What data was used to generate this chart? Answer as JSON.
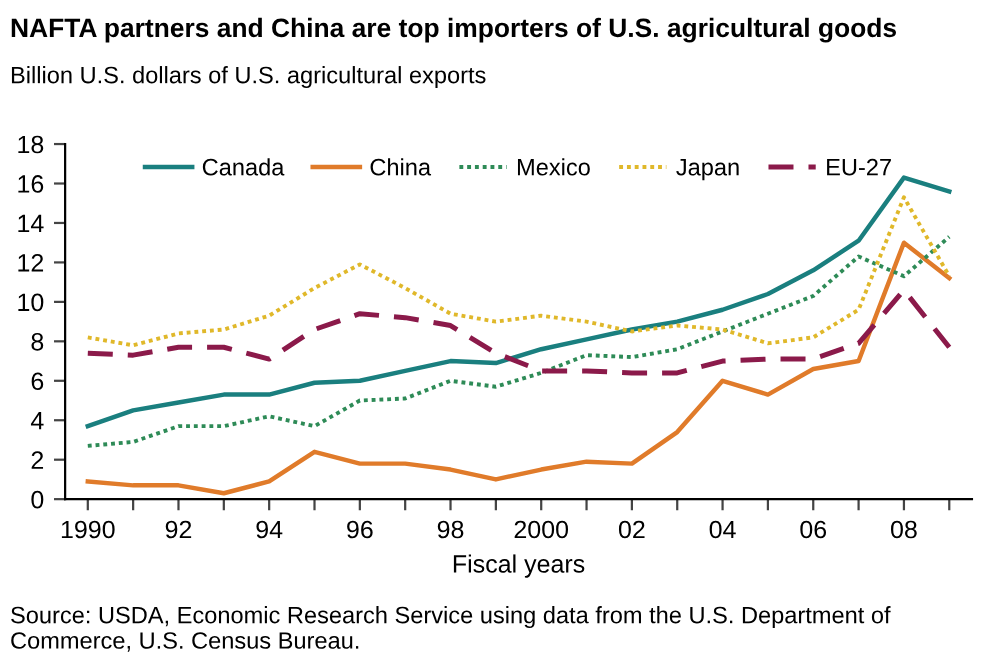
{
  "chart_data": {
    "type": "line",
    "title": "NAFTA partners and China are top importers of U.S. agricultural goods",
    "subtitle": "Billion U.S. dollars of U.S. agricultural exports",
    "xlabel": "Fiscal years",
    "x": [
      1990,
      1991,
      1992,
      1993,
      1994,
      1995,
      1996,
      1997,
      1998,
      1999,
      2000,
      2001,
      2002,
      2003,
      2004,
      2005,
      2006,
      2007,
      2008,
      2009
    ],
    "xlim": [
      1989.5,
      2009.5
    ],
    "xticks": [
      1990,
      {
        "value": 1991,
        "label": null
      },
      {
        "value": 1992,
        "label": "92"
      },
      {
        "value": 1993,
        "label": null
      },
      {
        "value": 1994,
        "label": "94"
      },
      {
        "value": 1995,
        "label": null
      },
      {
        "value": 1996,
        "label": "96"
      },
      {
        "value": 1997,
        "label": null
      },
      {
        "value": 1998,
        "label": "98"
      },
      {
        "value": 1999,
        "label": null
      },
      2000,
      {
        "value": 2001,
        "label": null
      },
      {
        "value": 2002,
        "label": "02"
      },
      {
        "value": 2003,
        "label": null
      },
      {
        "value": 2004,
        "label": "04"
      },
      {
        "value": 2005,
        "label": null
      },
      {
        "value": 2006,
        "label": "06"
      },
      {
        "value": 2007,
        "label": null
      },
      {
        "value": 2008,
        "label": "08"
      },
      {
        "value": 2009,
        "label": null
      }
    ],
    "ylim": [
      0,
      18
    ],
    "yticks": [
      0,
      2,
      4,
      6,
      8,
      10,
      12,
      14,
      16,
      18
    ],
    "grid": false,
    "legend": "top",
    "marker": "none",
    "series": [
      {
        "name": "Canada",
        "color": "#1a7f7f",
        "line_style": "solid",
        "values": [
          3.7,
          4.5,
          4.9,
          5.3,
          5.3,
          5.9,
          6.0,
          6.5,
          7.0,
          6.9,
          7.6,
          8.1,
          8.6,
          9.0,
          9.6,
          10.4,
          11.6,
          13.1,
          16.3,
          15.6
        ]
      },
      {
        "name": "China",
        "color": "#e07b2a",
        "line_style": "solid",
        "values": [
          0.9,
          0.7,
          0.7,
          0.3,
          0.9,
          2.4,
          1.8,
          1.8,
          1.5,
          1.0,
          1.5,
          1.9,
          1.8,
          3.4,
          6.0,
          5.3,
          6.6,
          7.0,
          13.0,
          11.2
        ]
      },
      {
        "name": "Mexico",
        "color": "#2e8b57",
        "line_style": "dotted",
        "values": [
          2.7,
          2.9,
          3.7,
          3.7,
          4.2,
          3.7,
          5.0,
          5.1,
          6.0,
          5.7,
          6.4,
          7.3,
          7.2,
          7.6,
          8.5,
          9.4,
          10.3,
          12.3,
          11.3,
          13.3
        ]
      },
      {
        "name": "Japan",
        "color": "#e0b82a",
        "line_style": "dotted",
        "values": [
          8.2,
          7.8,
          8.4,
          8.6,
          9.3,
          10.7,
          11.9,
          10.7,
          9.4,
          9.0,
          9.3,
          9.0,
          8.5,
          8.8,
          8.6,
          7.9,
          8.2,
          9.6,
          15.3,
          11.3
        ]
      },
      {
        "name": "EU-27",
        "color": "#8b1a4a",
        "line_style": "dashed",
        "values": [
          7.4,
          7.3,
          7.7,
          7.7,
          7.1,
          8.6,
          9.4,
          9.2,
          8.8,
          7.4,
          6.5,
          6.5,
          6.4,
          6.4,
          7.0,
          7.1,
          7.1,
          7.9,
          10.6,
          7.7
        ]
      }
    ],
    "annotations": [
      "Source: USDA, Economic Research Service using data from the U.S. Department of Commerce, U.S. Census Bureau."
    ]
  }
}
